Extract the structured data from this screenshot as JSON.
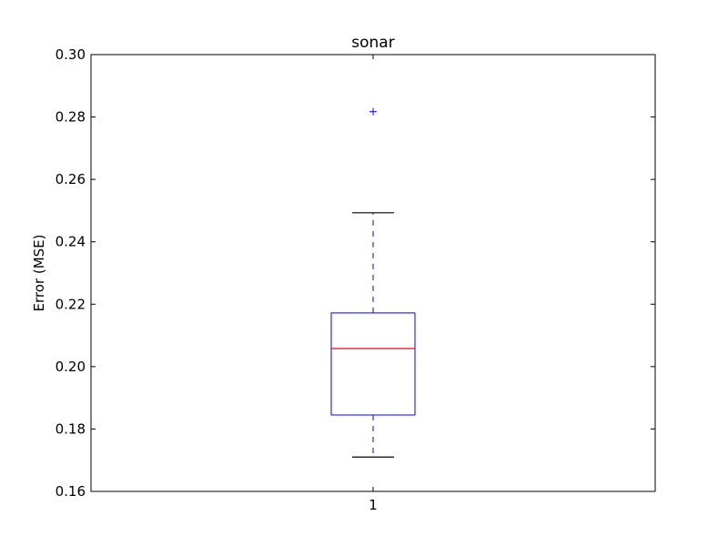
{
  "chart_data": {
    "type": "box",
    "title": "sonar",
    "xlabel": "",
    "ylabel": "Error (MSE)",
    "ylim": [
      0.16,
      0.3
    ],
    "yticks": [
      "0.16",
      "0.18",
      "0.20",
      "0.22",
      "0.24",
      "0.26",
      "0.28",
      "0.30"
    ],
    "categories": [
      "1"
    ],
    "boxes": [
      {
        "category": "1",
        "whisker_low": 0.171,
        "q1": 0.1845,
        "median": 0.2058,
        "q3": 0.2172,
        "whisker_high": 0.2493,
        "outliers": [
          0.2817
        ]
      }
    ],
    "grid": false,
    "colors": {
      "box": "#0000ff",
      "median": "#ff0000",
      "whisker": "#0000ff",
      "cap": "#000000",
      "outlier": "#0000ff"
    }
  }
}
